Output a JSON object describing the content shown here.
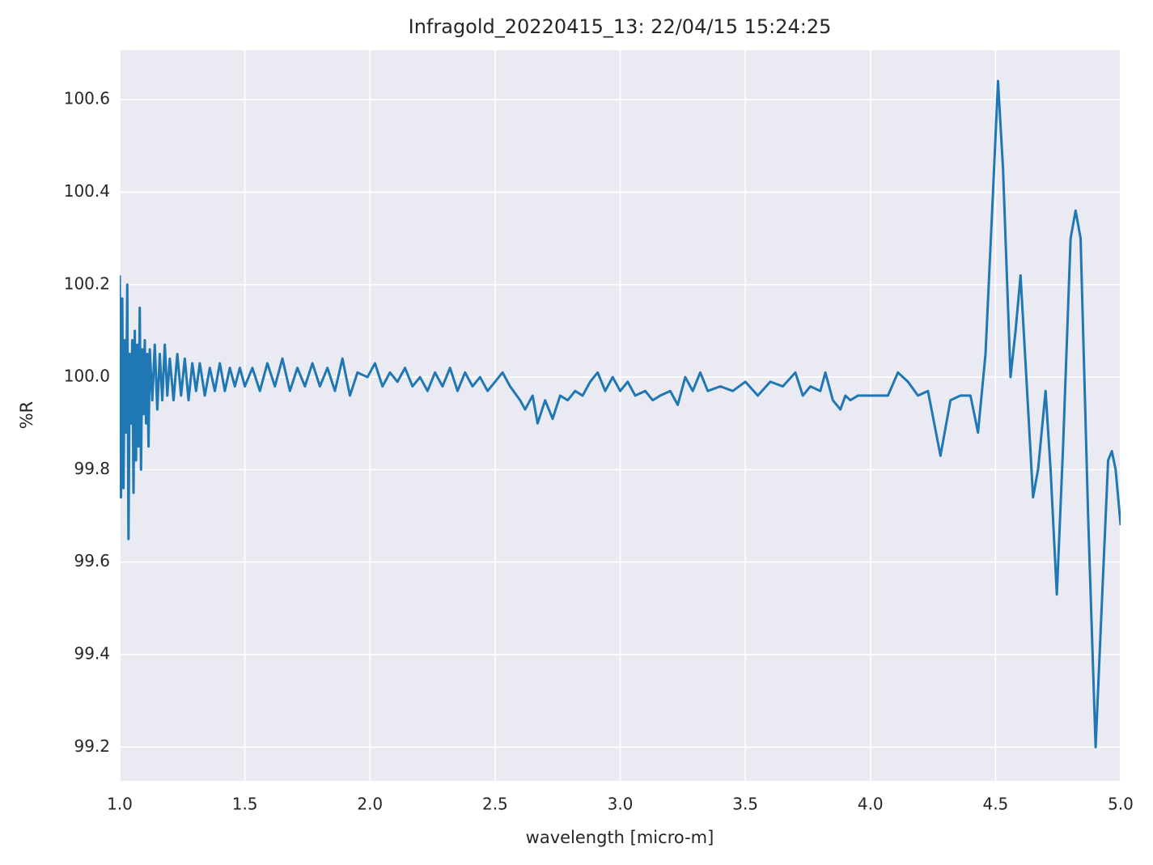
{
  "chart_data": {
    "type": "line",
    "title": "Infragold_20220415_13:  22/04/15 15:24:25",
    "xlabel": "wavelength [micro-m]",
    "ylabel": "%R",
    "color": "#1f77b4",
    "grid": true,
    "xlim": [
      1,
      5
    ],
    "ylim": [
      99.127,
      100.707
    ],
    "xticks": [
      {
        "value": 1,
        "label": "1.0"
      },
      1.5,
      {
        "value": 2,
        "label": "2.0"
      },
      2.5,
      {
        "value": 3,
        "label": "3.0"
      },
      3.5,
      {
        "value": 4,
        "label": "4.0"
      },
      4.5,
      {
        "value": 5,
        "label": "5.0"
      }
    ],
    "yticks": [
      99.2,
      99.4,
      99.6,
      99.8,
      {
        "value": 100,
        "label": "100.0"
      },
      100.2,
      100.4,
      100.6
    ],
    "x": [
      1.0,
      1.005,
      1.01,
      1.015,
      1.02,
      1.025,
      1.03,
      1.035,
      1.04,
      1.045,
      1.05,
      1.055,
      1.06,
      1.065,
      1.07,
      1.075,
      1.08,
      1.085,
      1.09,
      1.095,
      1.1,
      1.105,
      1.11,
      1.115,
      1.12,
      1.13,
      1.14,
      1.15,
      1.16,
      1.17,
      1.18,
      1.19,
      1.2,
      1.215,
      1.23,
      1.245,
      1.26,
      1.275,
      1.29,
      1.305,
      1.32,
      1.34,
      1.36,
      1.38,
      1.4,
      1.42,
      1.44,
      1.46,
      1.48,
      1.5,
      1.53,
      1.56,
      1.59,
      1.62,
      1.65,
      1.68,
      1.71,
      1.74,
      1.77,
      1.8,
      1.83,
      1.86,
      1.89,
      1.92,
      1.95,
      1.99,
      2.02,
      2.05,
      2.08,
      2.11,
      2.14,
      2.17,
      2.2,
      2.23,
      2.26,
      2.29,
      2.32,
      2.35,
      2.38,
      2.41,
      2.44,
      2.47,
      2.5,
      2.53,
      2.56,
      2.6,
      2.62,
      2.65,
      2.67,
      2.7,
      2.73,
      2.76,
      2.79,
      2.82,
      2.85,
      2.88,
      2.91,
      2.94,
      2.97,
      3.0,
      3.03,
      3.06,
      3.1,
      3.13,
      3.16,
      3.2,
      3.23,
      3.26,
      3.29,
      3.32,
      3.35,
      3.4,
      3.45,
      3.5,
      3.55,
      3.6,
      3.65,
      3.7,
      3.73,
      3.76,
      3.8,
      3.82,
      3.85,
      3.88,
      3.9,
      3.92,
      3.95,
      3.99,
      4.03,
      4.07,
      4.11,
      4.15,
      4.19,
      4.23,
      4.28,
      4.32,
      4.36,
      4.4,
      4.43,
      4.46,
      4.49,
      4.51,
      4.53,
      4.56,
      4.58,
      4.6,
      4.62,
      4.65,
      4.67,
      4.7,
      4.72,
      4.745,
      4.77,
      4.8,
      4.82,
      4.84,
      4.87,
      4.9,
      4.92,
      4.95,
      4.965,
      4.98,
      5.0
    ],
    "values": [
      100.22,
      99.74,
      100.17,
      99.76,
      100.08,
      99.88,
      100.2,
      99.65,
      100.05,
      99.9,
      100.08,
      99.75,
      100.1,
      99.82,
      100.07,
      99.85,
      100.15,
      99.8,
      100.06,
      99.92,
      100.08,
      99.9,
      100.05,
      99.85,
      100.06,
      99.95,
      100.07,
      99.93,
      100.05,
      99.95,
      100.07,
      99.96,
      100.04,
      99.95,
      100.05,
      99.96,
      100.04,
      99.95,
      100.03,
      99.97,
      100.03,
      99.96,
      100.02,
      99.97,
      100.03,
      99.97,
      100.02,
      99.98,
      100.02,
      99.98,
      100.02,
      99.97,
      100.03,
      99.98,
      100.04,
      99.97,
      100.02,
      99.98,
      100.03,
      99.98,
      100.02,
      99.97,
      100.04,
      99.96,
      100.01,
      100.0,
      100.03,
      99.98,
      100.01,
      99.99,
      100.02,
      99.98,
      100.0,
      99.97,
      100.01,
      99.98,
      100.02,
      99.97,
      100.01,
      99.98,
      100.0,
      99.97,
      99.99,
      100.01,
      99.98,
      99.95,
      99.93,
      99.96,
      99.9,
      99.95,
      99.91,
      99.96,
      99.95,
      99.97,
      99.96,
      99.99,
      100.01,
      99.97,
      100.0,
      99.97,
      99.99,
      99.96,
      99.97,
      99.95,
      99.96,
      99.97,
      99.94,
      100.0,
      99.97,
      100.01,
      99.97,
      99.98,
      99.97,
      99.99,
      99.96,
      99.99,
      99.98,
      100.01,
      99.96,
      99.98,
      99.97,
      100.01,
      99.95,
      99.93,
      99.96,
      99.95,
      99.96,
      99.96,
      99.96,
      99.96,
      100.01,
      99.99,
      99.96,
      99.97,
      99.83,
      99.95,
      99.96,
      99.96,
      99.88,
      100.05,
      100.4,
      100.64,
      100.45,
      100.0,
      100.1,
      100.22,
      100.03,
      99.74,
      99.8,
      99.97,
      99.8,
      99.53,
      99.85,
      100.3,
      100.36,
      100.3,
      99.7,
      99.2,
      99.45,
      99.82,
      99.84,
      99.8,
      99.68
    ]
  }
}
